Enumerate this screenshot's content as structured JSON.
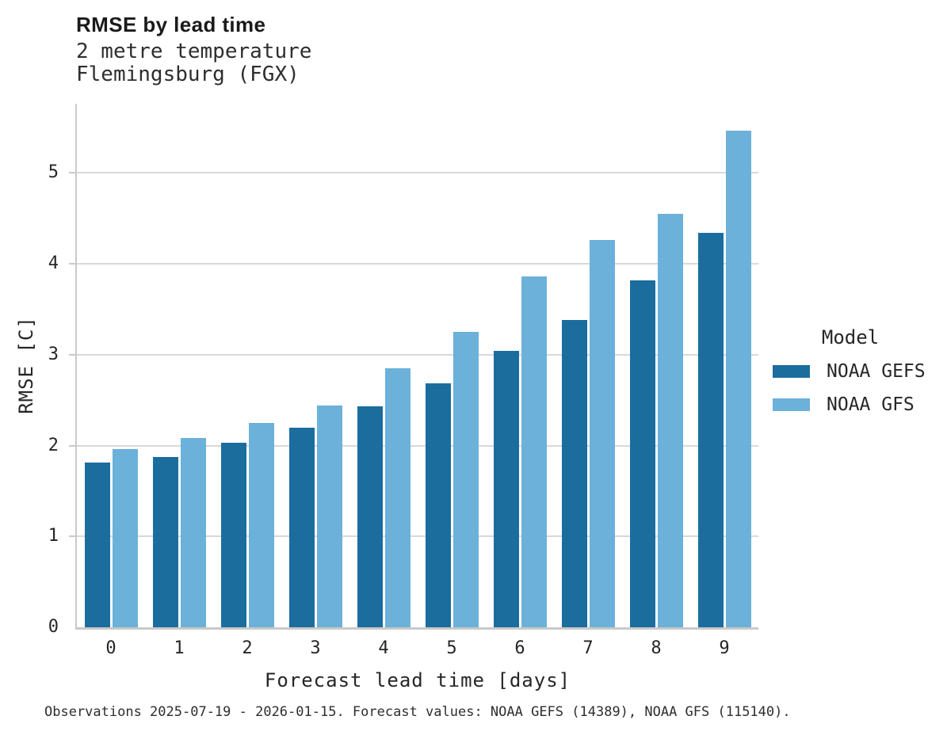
{
  "chart_data": {
    "type": "bar",
    "title": "RMSE by lead time",
    "subtitle_line1": "2 metre temperature",
    "subtitle_line2": "Flemingsburg (FGX)",
    "categories": [
      "0",
      "1",
      "2",
      "3",
      "4",
      "5",
      "6",
      "7",
      "8",
      "9"
    ],
    "series": [
      {
        "name": "NOAA GEFS",
        "color": "#1b6d9e",
        "values": [
          1.81,
          1.87,
          2.03,
          2.2,
          2.43,
          2.68,
          3.04,
          3.38,
          3.82,
          4.34
        ]
      },
      {
        "name": "NOAA GFS",
        "color": "#6bb1d9",
        "values": [
          1.96,
          2.08,
          2.25,
          2.44,
          2.85,
          3.25,
          3.86,
          4.26,
          4.55,
          5.46
        ]
      }
    ],
    "xlabel": "Forecast lead time [days]",
    "ylabel": "RMSE [C]",
    "ylim": [
      0,
      5.76
    ],
    "yticks": [
      0,
      1,
      2,
      3,
      4,
      5
    ],
    "grid": "horizontal",
    "legend_position": "center-right",
    "legend_title": "Model"
  },
  "legend": {
    "title": "Model"
  },
  "caption": "Observations 2025-07-19 - 2026-01-15. Forecast values: NOAA GEFS (14389), NOAA GFS (115140).",
  "style": {
    "gefs_color": "#1b6d9e",
    "gfs_color": "#6bb1d9",
    "gridline_color": "#d9d9d9",
    "spine_color": "#c9c9c9",
    "text_color": "#262626"
  }
}
